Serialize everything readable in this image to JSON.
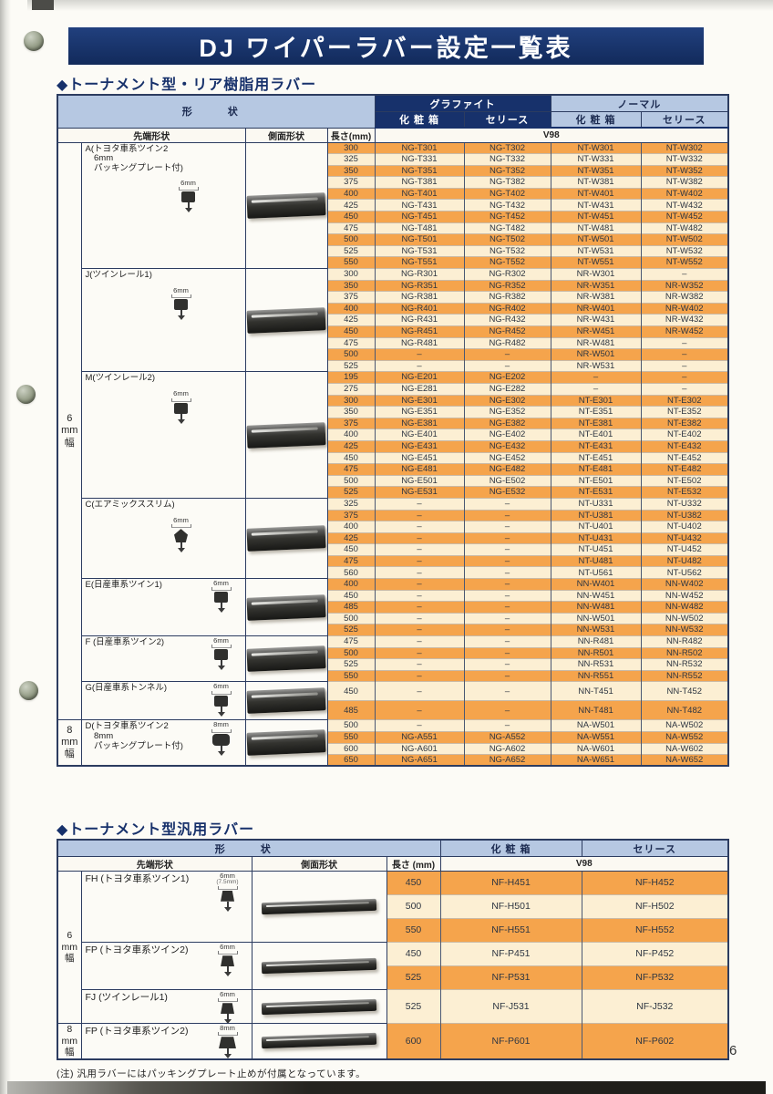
{
  "page": {
    "title": "DJ ワイパーラバー設定一覧表",
    "page_number": "6",
    "note": "(注) 汎用ラバーにはパッキングプレート止めが付属となっています。"
  },
  "colors": {
    "title_bg": "#17316b",
    "header_light_blue": "#b6c8e2",
    "row_orange": "#f5a44c",
    "row_cream": "#fcefd3"
  },
  "table1": {
    "title": "◆トーナメント型・リア樹脂用ラバー",
    "headers": {
      "shape": "形　状",
      "graphite": "グラファイト",
      "normal": "ノーマル",
      "box": "化 粧 箱",
      "series": "セリース",
      "box2": "化 粧 箱",
      "series2": "セリース",
      "tip": "先端形状",
      "side": "側面形状",
      "length": "長さ(mm)",
      "model": "V98"
    },
    "width_groups": [
      {
        "label": [
          "6",
          "mm",
          "幅"
        ],
        "section_ids": [
          "A",
          "J",
          "M",
          "C",
          "E",
          "F",
          "G"
        ]
      },
      {
        "label": [
          "8",
          "mm",
          "幅"
        ],
        "section_ids": [
          "D"
        ]
      }
    ],
    "sections": [
      {
        "id": "A",
        "label_lines": [
          "A(トヨタ車系ツイン2",
          "　6mm",
          "　パッキングプレート付)"
        ],
        "tip_size": "6mm",
        "rows": [
          [
            "300",
            "NG-T301",
            "NG-T302",
            "NT-W301",
            "NT-W302"
          ],
          [
            "325",
            "NG-T331",
            "NG-T332",
            "NT-W331",
            "NT-W332"
          ],
          [
            "350",
            "NG-T351",
            "NG-T352",
            "NT-W351",
            "NT-W352"
          ],
          [
            "375",
            "NG-T381",
            "NG-T382",
            "NT-W381",
            "NT-W382"
          ],
          [
            "400",
            "NG-T401",
            "NG-T402",
            "NT-W401",
            "NT-W402"
          ],
          [
            "425",
            "NG-T431",
            "NG-T432",
            "NT-W431",
            "NT-W432"
          ],
          [
            "450",
            "NG-T451",
            "NG-T452",
            "NT-W451",
            "NT-W452"
          ],
          [
            "475",
            "NG-T481",
            "NG-T482",
            "NT-W481",
            "NT-W482"
          ],
          [
            "500",
            "NG-T501",
            "NG-T502",
            "NT-W501",
            "NT-W502"
          ],
          [
            "525",
            "NG-T531",
            "NG-T532",
            "NT-W531",
            "NT-W532"
          ],
          [
            "550",
            "NG-T551",
            "NG-T552",
            "NT-W551",
            "NT-W552"
          ]
        ]
      },
      {
        "id": "J",
        "label_lines": [
          "J(ツインレール1)"
        ],
        "tip_size": "6mm",
        "rows": [
          [
            "300",
            "NG-R301",
            "NG-R302",
            "NR-W301",
            "–"
          ],
          [
            "350",
            "NG-R351",
            "NG-R352",
            "NR-W351",
            "NR-W352"
          ],
          [
            "375",
            "NG-R381",
            "NG-R382",
            "NR-W381",
            "NR-W382"
          ],
          [
            "400",
            "NG-R401",
            "NG-R402",
            "NR-W401",
            "NR-W402"
          ],
          [
            "425",
            "NG-R431",
            "NG-R432",
            "NR-W431",
            "NR-W432"
          ],
          [
            "450",
            "NG-R451",
            "NG-R452",
            "NR-W451",
            "NR-W452"
          ],
          [
            "475",
            "NG-R481",
            "NG-R482",
            "NR-W481",
            "–"
          ],
          [
            "500",
            "–",
            "–",
            "NR-W501",
            "–"
          ],
          [
            "525",
            "–",
            "–",
            "NR-W531",
            "–"
          ]
        ]
      },
      {
        "id": "M",
        "label_lines": [
          "M(ツインレール2)"
        ],
        "tip_size": "6mm",
        "rows": [
          [
            "195",
            "NG-E201",
            "NG-E202",
            "–",
            "–"
          ],
          [
            "275",
            "NG-E281",
            "NG-E282",
            "–",
            "–"
          ],
          [
            "300",
            "NG-E301",
            "NG-E302",
            "NT-E301",
            "NT-E302"
          ],
          [
            "350",
            "NG-E351",
            "NG-E352",
            "NT-E351",
            "NT-E352"
          ],
          [
            "375",
            "NG-E381",
            "NG-E382",
            "NT-E381",
            "NT-E382"
          ],
          [
            "400",
            "NG-E401",
            "NG-E402",
            "NT-E401",
            "NT-E402"
          ],
          [
            "425",
            "NG-E431",
            "NG-E432",
            "NT-E431",
            "NT-E432"
          ],
          [
            "450",
            "NG-E451",
            "NG-E452",
            "NT-E451",
            "NT-E452"
          ],
          [
            "475",
            "NG-E481",
            "NG-E482",
            "NT-E481",
            "NT-E482"
          ],
          [
            "500",
            "NG-E501",
            "NG-E502",
            "NT-E501",
            "NT-E502"
          ],
          [
            "525",
            "NG-E531",
            "NG-E532",
            "NT-E531",
            "NT-E532"
          ]
        ]
      },
      {
        "id": "C",
        "label_lines": [
          "C(エアミックススリム)"
        ],
        "tip_size": "6mm",
        "rows": [
          [
            "325",
            "–",
            "–",
            "NT-U331",
            "NT-U332"
          ],
          [
            "375",
            "–",
            "–",
            "NT-U381",
            "NT-U382"
          ],
          [
            "400",
            "–",
            "–",
            "NT-U401",
            "NT-U402"
          ],
          [
            "425",
            "–",
            "–",
            "NT-U431",
            "NT-U432"
          ],
          [
            "450",
            "–",
            "–",
            "NT-U451",
            "NT-U452"
          ],
          [
            "475",
            "–",
            "–",
            "NT-U481",
            "NT-U482"
          ],
          [
            "560",
            "–",
            "–",
            "NT-U561",
            "NT-U562"
          ]
        ]
      },
      {
        "id": "E",
        "label_lines": [
          "E(日産車系ツイン1)"
        ],
        "tip_size": "6mm",
        "rows": [
          [
            "400",
            "–",
            "–",
            "NN-W401",
            "NN-W402"
          ],
          [
            "450",
            "–",
            "–",
            "NN-W451",
            "NN-W452"
          ],
          [
            "485",
            "–",
            "–",
            "NN-W481",
            "NN-W482"
          ],
          [
            "500",
            "–",
            "–",
            "NN-W501",
            "NN-W502"
          ],
          [
            "525",
            "–",
            "–",
            "NN-W531",
            "NN-W532"
          ]
        ]
      },
      {
        "id": "F",
        "label_lines": [
          "F (日産車系ツイン2)"
        ],
        "tip_size": "6mm",
        "rows": [
          [
            "475",
            "–",
            "–",
            "NN-R481",
            "NN-R482"
          ],
          [
            "500",
            "–",
            "–",
            "NN-R501",
            "NN-R502"
          ],
          [
            "525",
            "–",
            "–",
            "NN-R531",
            "NN-R532"
          ],
          [
            "550",
            "–",
            "–",
            "NN-R551",
            "NN-R552"
          ]
        ]
      },
      {
        "id": "G",
        "label_lines": [
          "G(日産車系トンネル)"
        ],
        "tip_size": "6mm",
        "rows": [
          [
            "450",
            "–",
            "–",
            "NN-T451",
            "NN-T452"
          ],
          [
            "485",
            "–",
            "–",
            "NN-T481",
            "NN-T482"
          ]
        ]
      },
      {
        "id": "D",
        "label_lines": [
          "D(トヨタ車系ツイン2",
          "　8mm",
          "　パッキングプレート付)"
        ],
        "tip_size": "8mm",
        "rows": [
          [
            "500",
            "–",
            "–",
            "NA-W501",
            "NA-W502"
          ],
          [
            "550",
            "NG-A551",
            "NG-A552",
            "NA-W551",
            "NA-W552"
          ],
          [
            "600",
            "NG-A601",
            "NG-A602",
            "NA-W601",
            "NA-W602"
          ],
          [
            "650",
            "NG-A651",
            "NG-A652",
            "NA-W651",
            "NA-W652"
          ]
        ]
      }
    ]
  },
  "table2": {
    "title": "◆トーナメント型汎用ラバー",
    "headers": {
      "shape": "形　状",
      "box": "化 粧 箱",
      "series": "セリース",
      "tip": "先端形状",
      "side": "側面形状",
      "length": "長さ (mm)",
      "model": "V98"
    },
    "width_groups": [
      {
        "label": [
          "6",
          "mm",
          "幅"
        ],
        "section_ids": [
          "FH",
          "FP6",
          "FJ"
        ]
      },
      {
        "label": [
          "8",
          "mm",
          "幅"
        ],
        "section_ids": [
          "FP8"
        ]
      }
    ],
    "sections": [
      {
        "id": "FH",
        "label_lines": [
          "FH (トヨタ車系ツイン1)"
        ],
        "tip_size": "6mm",
        "tip_sub": "(7.5mm)",
        "rows": [
          [
            "450",
            "NF-H451",
            "NF-H452"
          ],
          [
            "500",
            "NF-H501",
            "NF-H502"
          ],
          [
            "550",
            "NF-H551",
            "NF-H552"
          ]
        ]
      },
      {
        "id": "FP6",
        "label_lines": [
          "FP (トヨタ車系ツイン2)"
        ],
        "tip_size": "6mm",
        "rows": [
          [
            "450",
            "NF-P451",
            "NF-P452"
          ],
          [
            "525",
            "NF-P531",
            "NF-P532"
          ]
        ]
      },
      {
        "id": "FJ",
        "label_lines": [
          "FJ (ツインレール1)"
        ],
        "tip_size": "6mm",
        "rows": [
          [
            "525",
            "NF-J531",
            "NF-J532"
          ]
        ]
      },
      {
        "id": "FP8",
        "label_lines": [
          "FP (トヨタ車系ツイン2)"
        ],
        "tip_size": "8mm",
        "rows": [
          [
            "600",
            "NF-P601",
            "NF-P602"
          ]
        ]
      }
    ]
  }
}
